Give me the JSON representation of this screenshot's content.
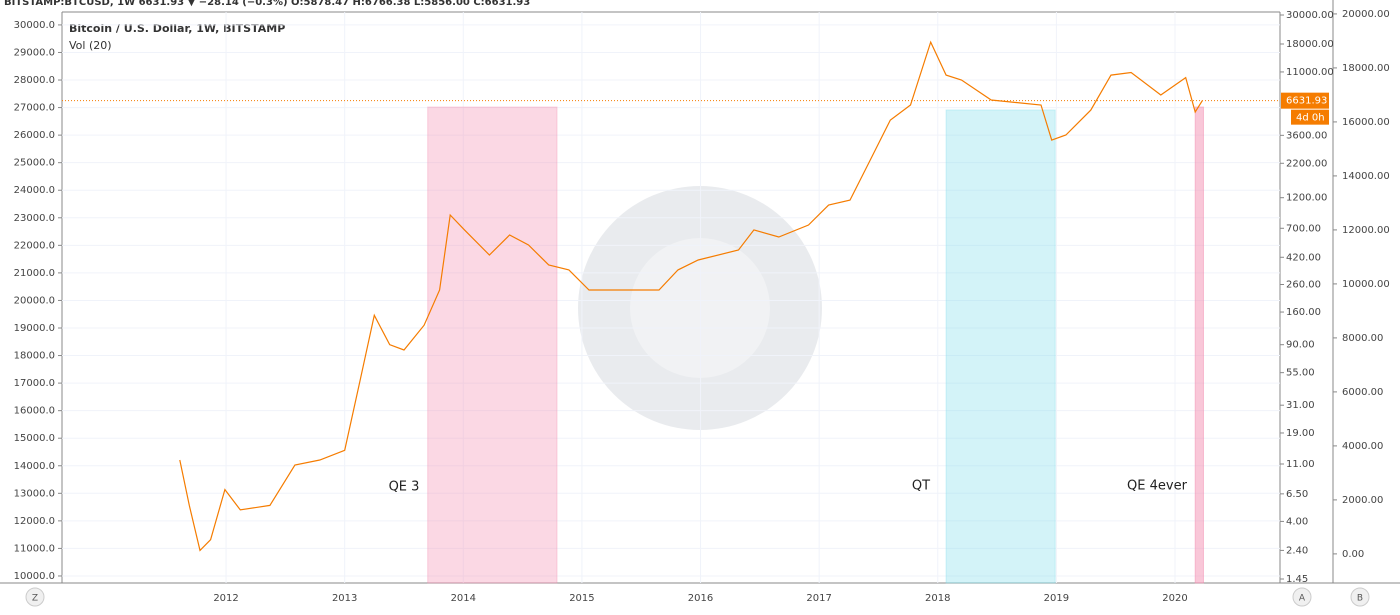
{
  "header": "BITSTAMP:BTCUSD, 1W 6631.93 ▼ −28.14 (−0.3%) O:5878.47 H:6766.38 L:5856.00 C:6631.93",
  "buttons": [
    "Z",
    "A",
    "B"
  ],
  "chart_data": {
    "type": "line",
    "title": "Bitcoin / U.S. Dollar, 1W, BITSTAMP",
    "subtitle": "Vol (20)",
    "color": "#f57c00",
    "log_scale": true,
    "grid": true,
    "x": [
      2011.61,
      2011.69,
      2011.78,
      2011.87,
      2011.99,
      2012.12,
      2012.37,
      2012.58,
      2012.79,
      2013.0,
      2013.13,
      2013.25,
      2013.38,
      2013.5,
      2013.67,
      2013.8,
      2013.89,
      2014.01,
      2014.22,
      2014.39,
      2014.55,
      2014.72,
      2014.89,
      2015.06,
      2015.31,
      2015.65,
      2015.81,
      2015.98,
      2016.32,
      2016.45,
      2016.66,
      2016.91,
      2017.08,
      2017.26,
      2017.43,
      2017.6,
      2017.77,
      2017.94,
      2018.07,
      2018.2,
      2018.45,
      2018.87,
      2018.96,
      2019.08,
      2019.29,
      2019.46,
      2019.63,
      2019.88,
      2020.09,
      2020.17,
      2020.23
    ],
    "values": [
      11.8,
      5.3,
      2.4,
      2.9,
      7.0,
      4.9,
      5.3,
      10.8,
      11.8,
      14,
      48,
      151,
      90,
      82,
      127,
      236,
      885,
      680,
      437,
      622,
      521,
      367,
      336,
      236,
      236,
      236,
      336,
      400,
      477,
      680,
      600,
      741,
      1054,
      1150,
      2328,
      4710,
      6140,
      18600,
      10400,
      9550,
      6710,
      6140,
      3310,
      3620,
      5620,
      10400,
      10900,
      7330,
      9950,
      5430,
      6631.93
    ],
    "last_price": {
      "value": 6631.93,
      "label": "6631.93"
    },
    "countdown": "4d 0h",
    "xlim": [
      2010.617,
      2020.885
    ],
    "xticks": [
      2012,
      2013,
      2014,
      2015,
      2016,
      2017,
      2018,
      2019,
      2020
    ],
    "ylim": [
      1.45,
      30000
    ],
    "yticks": [
      {
        "value": 30000,
        "label": "30000.00"
      },
      {
        "value": 18000,
        "label": "18000.00"
      },
      {
        "value": 11000,
        "label": "11000.00"
      },
      {
        "value": 3600,
        "label": "3600.00"
      },
      {
        "value": 2200,
        "label": "2200.00"
      },
      {
        "value": 1200,
        "label": "1200.00"
      },
      {
        "value": 700,
        "label": "700.00"
      },
      {
        "value": 420,
        "label": "420.00"
      },
      {
        "value": 260,
        "label": "260.00"
      },
      {
        "value": 160,
        "label": "160.00"
      },
      {
        "value": 90,
        "label": "90.00"
      },
      {
        "value": 55,
        "label": "55.00"
      },
      {
        "value": 31,
        "label": "31.00"
      },
      {
        "value": 19,
        "label": "19.00"
      },
      {
        "value": 11,
        "label": "11.00"
      },
      {
        "value": 6.5,
        "label": "6.50"
      },
      {
        "value": 4,
        "label": "4.00"
      },
      {
        "value": 2.4,
        "label": "2.40"
      },
      {
        "value": 1.45,
        "label": "1.45"
      }
    ],
    "y2lim": [
      9890,
      30360
    ],
    "y2ticks": [
      {
        "value": 30000,
        "label": "30000.0"
      },
      {
        "value": 29000,
        "label": "29000.0"
      },
      {
        "value": 28000,
        "label": "28000.0"
      },
      {
        "value": 27000,
        "label": "27000.0"
      },
      {
        "value": 26000,
        "label": "26000.0"
      },
      {
        "value": 25000,
        "label": "25000.0"
      },
      {
        "value": 24000,
        "label": "24000.0"
      },
      {
        "value": 23000,
        "label": "23000.0"
      },
      {
        "value": 22000,
        "label": "22000.0"
      },
      {
        "value": 21000,
        "label": "21000.0"
      },
      {
        "value": 20000,
        "label": "20000.0"
      },
      {
        "value": 19000,
        "label": "19000.0"
      },
      {
        "value": 18000,
        "label": "18000.0"
      },
      {
        "value": 17000,
        "label": "17000.0"
      },
      {
        "value": 16000,
        "label": "16000.0"
      },
      {
        "value": 15000,
        "label": "15000.0"
      },
      {
        "value": 14000,
        "label": "14000.0"
      },
      {
        "value": 13000,
        "label": "13000.0"
      },
      {
        "value": 12000,
        "label": "12000.0"
      },
      {
        "value": 11000,
        "label": "11000.0"
      },
      {
        "value": 10000,
        "label": "10000.0"
      }
    ],
    "y3lim": [
      -930,
      19960
    ],
    "y3ticks": [
      {
        "value": 20000,
        "label": "20000.00"
      },
      {
        "value": 18000,
        "label": "18000.00"
      },
      {
        "value": 16000,
        "label": "16000.00"
      },
      {
        "value": 14000,
        "label": "14000.00"
      },
      {
        "value": 12000,
        "label": "12000.00"
      },
      {
        "value": 10000,
        "label": "10000.00"
      },
      {
        "value": 8000,
        "label": "8000.00"
      },
      {
        "value": 6000,
        "label": "6000.00"
      },
      {
        "value": 4000,
        "label": "4000.00"
      },
      {
        "value": 2000,
        "label": "2000.00"
      },
      {
        "value": 0,
        "label": "0.00"
      }
    ],
    "regions": [
      {
        "label": "QE 3",
        "x0": 2013.7,
        "x1": 2014.79,
        "top": 5930,
        "color": "rgba(244,143,177,0.35)"
      },
      {
        "label": "QT",
        "x0": 2018.07,
        "x1": 2018.99,
        "top": 5630,
        "color": "rgba(128,222,234,0.35)"
      },
      {
        "label": "QE 4ever",
        "x0": 2020.17,
        "x1": 2020.24,
        "top": 5930,
        "color": "rgba(244,143,177,0.5)"
      }
    ]
  }
}
